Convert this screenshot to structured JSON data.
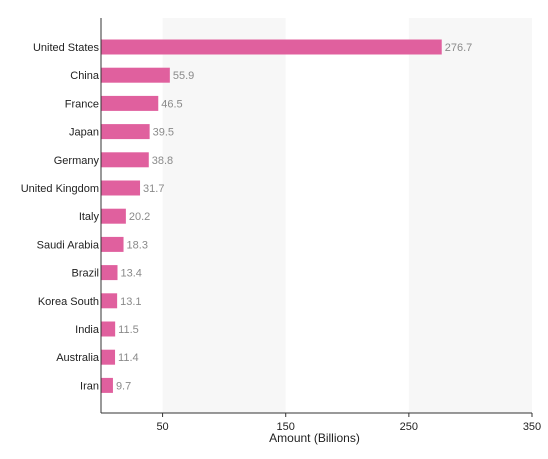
{
  "chart_data": {
    "type": "bar",
    "orientation": "horizontal",
    "xlabel": "Amount (Billions)",
    "ylabel": "",
    "xlim": [
      0,
      350
    ],
    "x_ticks": [
      50,
      150,
      250,
      350
    ],
    "x_tick_labels": [
      "50",
      "150",
      "250",
      "350"
    ],
    "grid": "alternating vertical bands",
    "legend": "none",
    "bar_color": "#e0609e",
    "categories": [
      "United States",
      "China",
      "France",
      "Japan",
      "Germany",
      "United Kingdom",
      "Italy",
      "Saudi Arabia",
      "Brazil",
      "Korea South",
      "India",
      "Australia",
      "Iran"
    ],
    "values": [
      276.7,
      55.9,
      46.5,
      39.5,
      38.8,
      31.7,
      20.2,
      18.3,
      13.4,
      13.1,
      11.5,
      11.4,
      9.7
    ],
    "value_labels": [
      "276.7",
      "55.9",
      "46.5",
      "39.5",
      "38.8",
      "31.7",
      "20.2",
      "18.3",
      "13.4",
      "13.1",
      "11.5",
      "11.4",
      "9.7"
    ]
  }
}
